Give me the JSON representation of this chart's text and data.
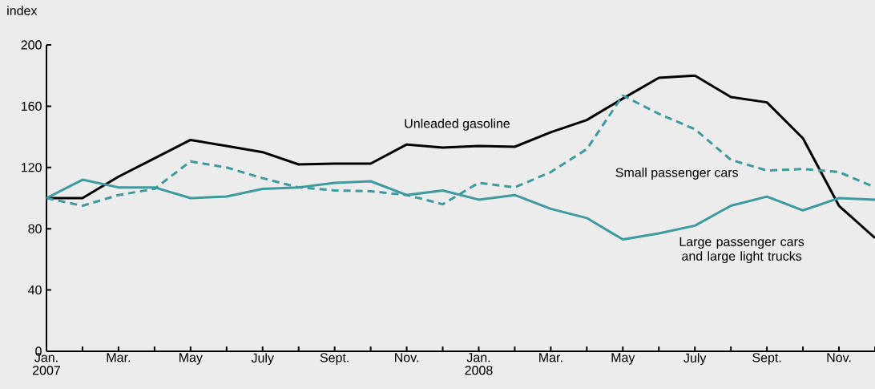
{
  "chart_data": {
    "type": "line",
    "ylabel": "index",
    "categories": [
      "Jan. 2007",
      null,
      "Mar.",
      null,
      "May",
      null,
      "July",
      null,
      "Sept.",
      null,
      "Nov.",
      null,
      "Jan. 2008",
      null,
      "Mar.",
      null,
      "May",
      null,
      "July",
      null,
      "Sept.",
      null,
      "Nov.",
      null
    ],
    "series": [
      {
        "name": "Unleaded gasoline",
        "color": "#000000",
        "line_style": "solid",
        "values": [
          100,
          100,
          114,
          126,
          138,
          134,
          130,
          122,
          122.5,
          122.5,
          135,
          133,
          134,
          133.5,
          143,
          151,
          165,
          178.5,
          180,
          166,
          162.5,
          139,
          95,
          74
        ]
      },
      {
        "name": "Small passenger cars",
        "color": "#3d9a9f",
        "line_style": "dashed",
        "values": [
          100,
          95,
          102,
          106,
          124,
          120,
          113,
          107,
          105,
          104.5,
          102,
          96,
          110,
          107,
          117,
          132,
          167,
          155,
          145,
          125,
          118,
          119,
          117,
          107
        ]
      },
      {
        "name": "Large passenger cars and large light trucks",
        "color": "#3d9a9f",
        "line_style": "solid",
        "values": [
          100,
          112,
          107,
          107,
          100,
          101,
          106,
          107,
          110,
          111,
          102,
          105,
          99,
          102,
          93,
          87,
          73,
          77,
          82,
          95,
          101,
          92,
          100,
          99
        ]
      }
    ],
    "ylim": [
      0,
      200
    ],
    "yticks": [
      0,
      40,
      80,
      120,
      160,
      200
    ],
    "grid": false,
    "legend": false,
    "marker": "none"
  }
}
